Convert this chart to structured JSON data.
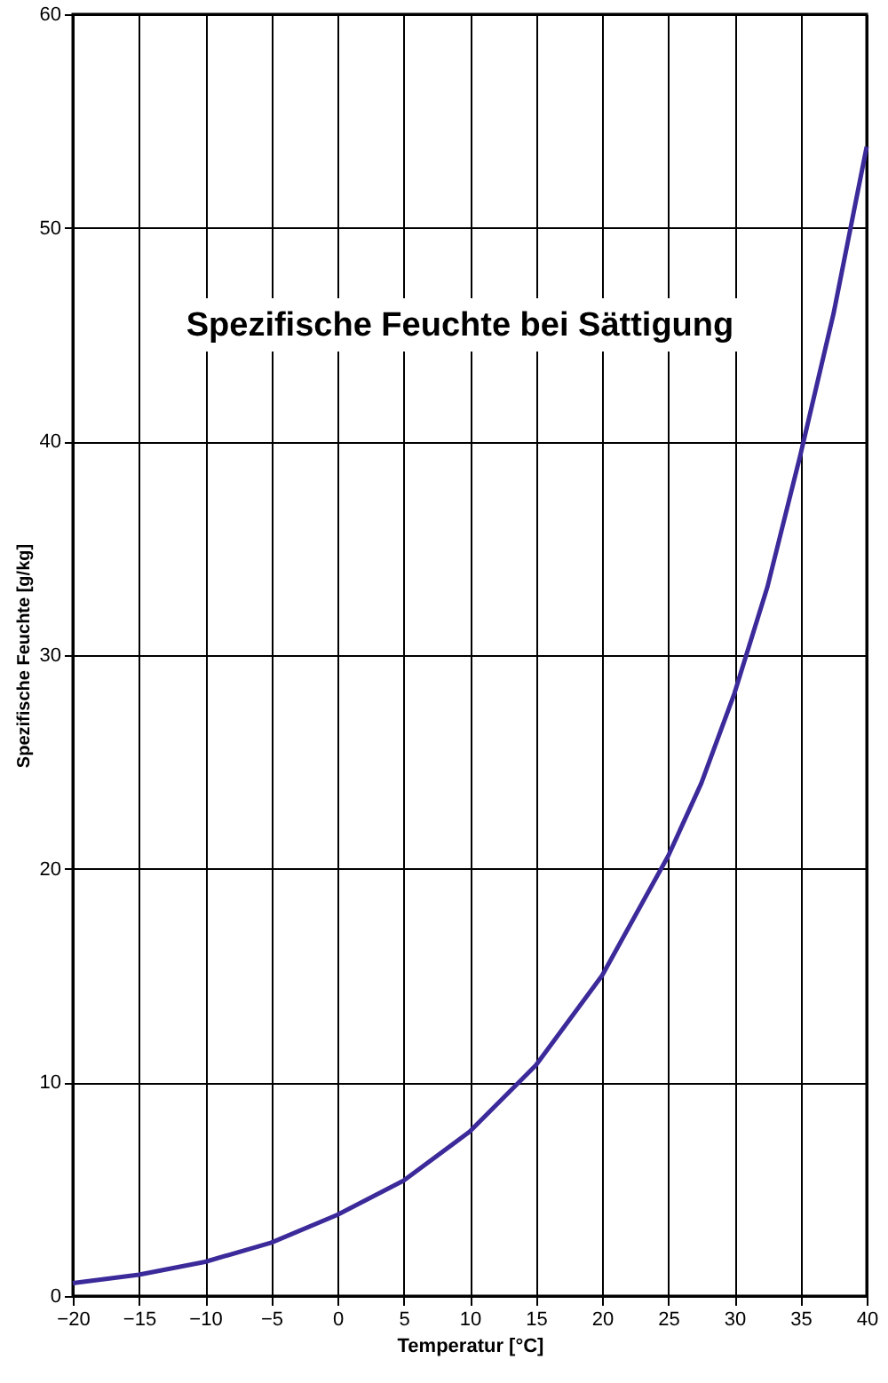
{
  "chart_data": {
    "type": "line",
    "title": "Spezifische Feuchte bei Sättigung",
    "xlabel": "Temperatur [°C]",
    "ylabel": "Spezifische Feuchte [g/kg]",
    "x": [
      -20,
      -15,
      -10,
      -5,
      0,
      5,
      10,
      15,
      20,
      25,
      27.5,
      30,
      32.5,
      35,
      37.5,
      40
    ],
    "series": [
      {
        "color": "#3b2a9a",
        "values": [
          0.6,
          1.0,
          1.6,
          2.5,
          3.8,
          5.4,
          7.7,
          10.8,
          15.0,
          20.6,
          24.0,
          28.2,
          33.2,
          39.4,
          46.0,
          53.8
        ]
      }
    ],
    "xlim": [
      -20,
      40
    ],
    "xticks": [
      -20,
      -15,
      -10,
      -5,
      0,
      5,
      10,
      15,
      20,
      25,
      30,
      35,
      40
    ],
    "ylim": [
      0,
      60
    ],
    "yticks": [
      0,
      10,
      20,
      30,
      40,
      50,
      60
    ],
    "grid": true,
    "marker": "none",
    "line_style": "solid"
  }
}
